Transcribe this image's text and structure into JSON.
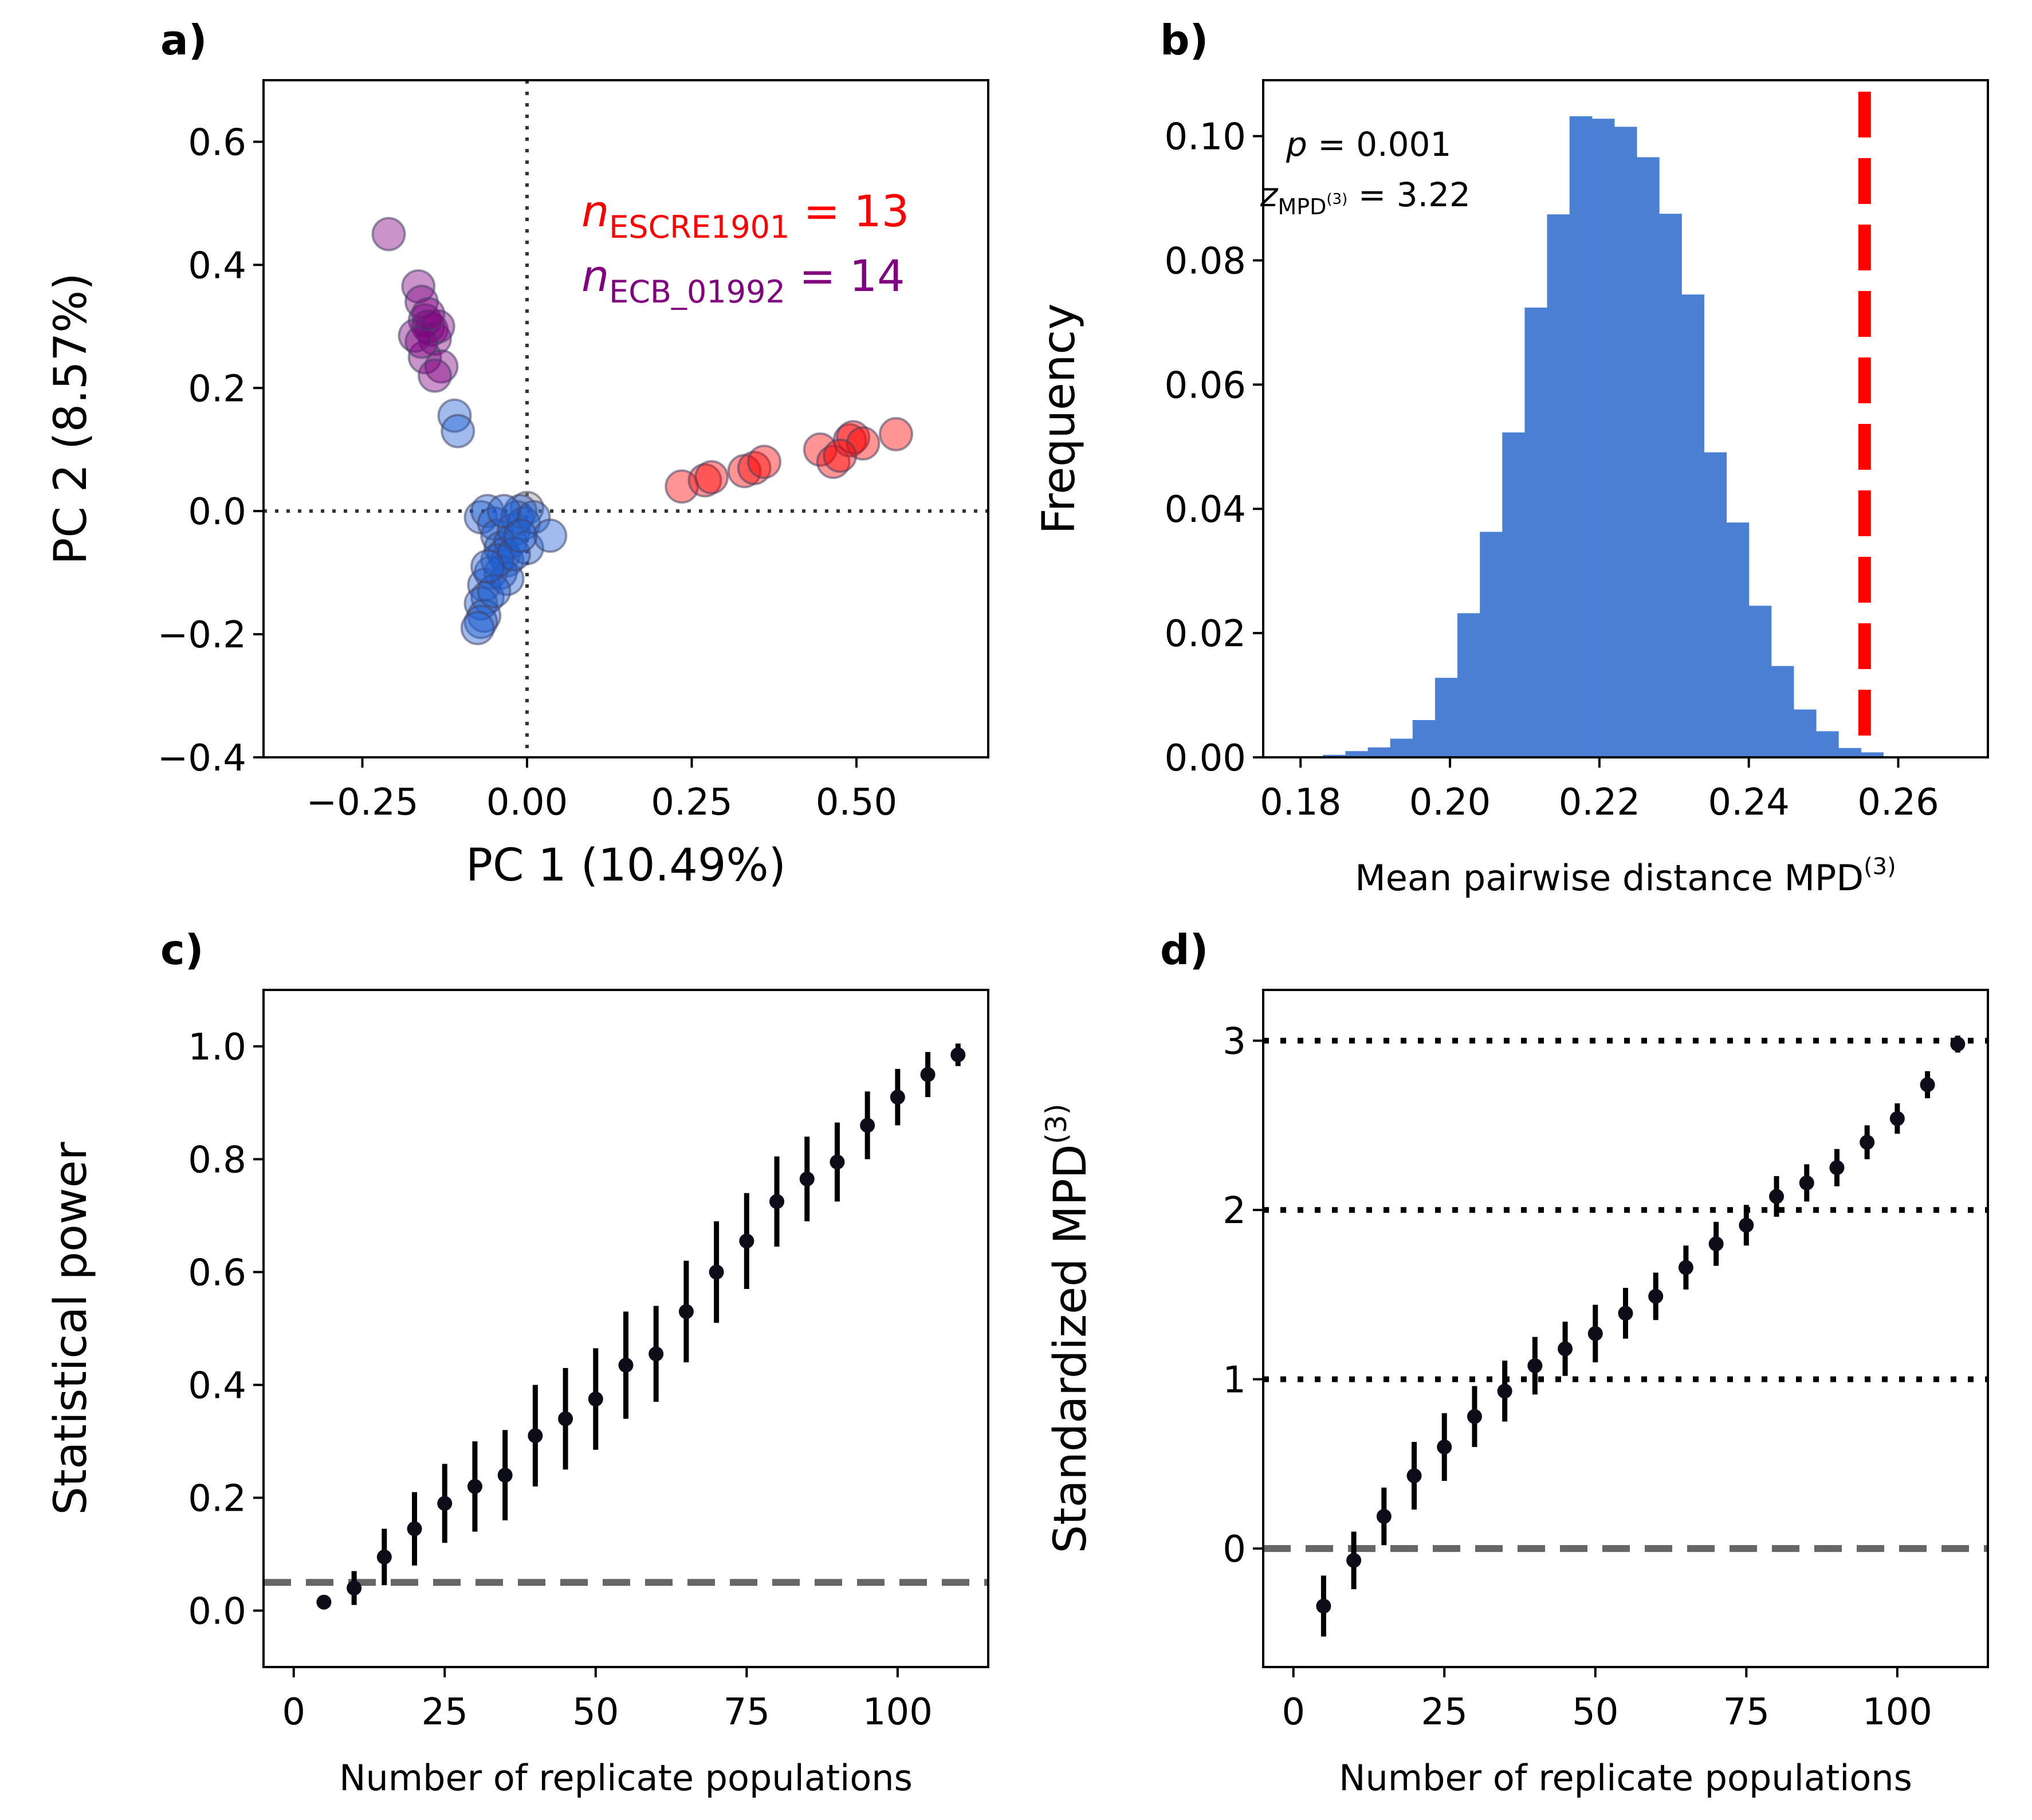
{
  "chart_data": [
    {
      "panel": "a)",
      "type": "scatter",
      "xlabel": "PC 1 (10.49%)",
      "ylabel": "PC 2 (8.57%)",
      "xlim": [
        -0.4,
        0.7
      ],
      "ylim": [
        -0.4,
        0.7
      ],
      "xticks": [
        -0.25,
        0.0,
        0.25,
        0.5
      ],
      "xtick_labels": [
        "−0.25",
        "0.00",
        "0.25",
        "0.50"
      ],
      "yticks": [
        -0.4,
        -0.2,
        0.0,
        0.2,
        0.4,
        0.6
      ],
      "ytick_labels": [
        "−0.4",
        "−0.2",
        "0.0",
        "0.2",
        "0.4",
        "0.6"
      ],
      "reference_lines": {
        "x": 0,
        "y": 0,
        "style": "dotted"
      },
      "annotations": [
        {
          "symbol": "n",
          "subscript": "ESCRE1901",
          "value": "= 13",
          "color": "#ff0000"
        },
        {
          "symbol": "n",
          "subscript": "ECB_01992",
          "value": "= 14",
          "color": "#800080"
        }
      ],
      "series": [
        {
          "color": "#ff0000",
          "x": [
            0.235,
            0.27,
            0.28,
            0.33,
            0.345,
            0.36,
            0.445,
            0.465,
            0.49,
            0.495,
            0.51,
            0.56,
            0.475
          ],
          "y": [
            0.04,
            0.05,
            0.055,
            0.065,
            0.07,
            0.08,
            0.1,
            0.08,
            0.115,
            0.12,
            0.11,
            0.125,
            0.09
          ]
        },
        {
          "color": "#800080",
          "x": [
            -0.21,
            -0.165,
            -0.16,
            -0.155,
            -0.15,
            -0.145,
            -0.14,
            -0.135,
            -0.155,
            -0.17,
            -0.13,
            -0.14,
            -0.16,
            -0.15
          ],
          "y": [
            0.45,
            0.365,
            0.34,
            0.31,
            0.3,
            0.295,
            0.28,
            0.3,
            0.25,
            0.285,
            0.235,
            0.22,
            0.275,
            0.32
          ]
        },
        {
          "color": "#1f5fd1",
          "x": [
            -0.11,
            -0.105,
            -0.07,
            -0.06,
            -0.05,
            -0.045,
            -0.04,
            -0.035,
            -0.03,
            -0.025,
            -0.02,
            -0.015,
            -0.01,
            -0.005,
            0.0,
            0.01,
            0.035,
            -0.055,
            -0.065,
            -0.06,
            -0.07,
            -0.065,
            -0.07,
            -0.075,
            -0.04,
            -0.03,
            -0.045,
            -0.05,
            -0.02,
            -0.06,
            -0.035,
            -0.01
          ],
          "y": [
            0.155,
            0.13,
            -0.01,
            0.0,
            -0.02,
            -0.04,
            -0.06,
            -0.07,
            -0.08,
            -0.05,
            -0.03,
            -0.01,
            0.0,
            -0.02,
            -0.06,
            -0.01,
            -0.04,
            -0.1,
            -0.12,
            -0.14,
            -0.15,
            -0.17,
            -0.18,
            -0.19,
            -0.1,
            -0.11,
            -0.08,
            -0.13,
            -0.07,
            -0.09,
            0.0,
            -0.04
          ]
        },
        {
          "color": "#999999",
          "x": [
            0.0
          ],
          "y": [
            0.005
          ]
        }
      ]
    },
    {
      "panel": "b)",
      "type": "bar",
      "xlabel": "Mean pairwise distance MPD",
      "xlabel_sup": "(3)",
      "ylabel": "Frequency",
      "xlim": [
        0.175,
        0.272
      ],
      "ylim": [
        0.0,
        0.109
      ],
      "xticks": [
        0.18,
        0.2,
        0.22,
        0.24,
        0.26
      ],
      "xtick_labels": [
        "0.18",
        "0.20",
        "0.22",
        "0.24",
        "0.26"
      ],
      "yticks": [
        0.0,
        0.02,
        0.04,
        0.06,
        0.08,
        0.1
      ],
      "ytick_labels": [
        "0.00",
        "0.02",
        "0.04",
        "0.06",
        "0.08",
        "0.10"
      ],
      "bar_color": "#4a7fd4",
      "bin_width": 0.003,
      "bin_left": [
        0.18,
        0.183,
        0.186,
        0.189,
        0.192,
        0.195,
        0.198,
        0.201,
        0.204,
        0.207,
        0.21,
        0.213,
        0.216,
        0.219,
        0.222,
        0.225,
        0.228,
        0.231,
        0.234,
        0.237,
        0.24,
        0.243,
        0.246,
        0.249,
        0.252,
        0.255
      ],
      "values": [
        0.0002,
        0.0004,
        0.001,
        0.0016,
        0.003,
        0.006,
        0.0128,
        0.0232,
        0.0363,
        0.0523,
        0.0724,
        0.0874,
        0.1032,
        0.1028,
        0.1015,
        0.0966,
        0.0875,
        0.0745,
        0.0491,
        0.0378,
        0.0244,
        0.0147,
        0.0077,
        0.0042,
        0.0015,
        0.0008
      ],
      "observed_line": {
        "x": 0.2555,
        "color": "#ff0000",
        "style": "dashed"
      },
      "annotations": [
        {
          "symbol": "p",
          "value": "= 0.001"
        },
        {
          "symbol": "z",
          "subscript": "MPD",
          "subscript_sup": "(3)",
          "value": "= 3.22"
        }
      ]
    },
    {
      "panel": "c)",
      "type": "scatter",
      "xlabel": "Number of replicate populations",
      "ylabel": "Statistical power",
      "xlim": [
        -5,
        115
      ],
      "ylim": [
        -0.1,
        1.1
      ],
      "xticks": [
        0,
        25,
        50,
        75,
        100
      ],
      "xtick_labels": [
        "0",
        "25",
        "50",
        "75",
        "100"
      ],
      "yticks": [
        0.0,
        0.2,
        0.4,
        0.6,
        0.8,
        1.0
      ],
      "ytick_labels": [
        "0.0",
        "0.2",
        "0.4",
        "0.6",
        "0.8",
        "1.0"
      ],
      "reference_line": {
        "y": 0.05,
        "style": "dashed",
        "color": "#666666"
      },
      "x": [
        5,
        10,
        15,
        20,
        25,
        30,
        35,
        40,
        45,
        50,
        55,
        60,
        65,
        70,
        75,
        80,
        85,
        90,
        95,
        100,
        105,
        110
      ],
      "y": [
        0.015,
        0.04,
        0.095,
        0.145,
        0.19,
        0.22,
        0.24,
        0.31,
        0.34,
        0.375,
        0.435,
        0.455,
        0.53,
        0.6,
        0.655,
        0.725,
        0.765,
        0.795,
        0.86,
        0.91,
        0.95,
        0.985
      ],
      "yerr": [
        0.01,
        0.03,
        0.05,
        0.065,
        0.07,
        0.08,
        0.08,
        0.09,
        0.09,
        0.09,
        0.095,
        0.085,
        0.09,
        0.09,
        0.085,
        0.08,
        0.075,
        0.07,
        0.06,
        0.05,
        0.04,
        0.02
      ]
    },
    {
      "panel": "d)",
      "type": "scatter",
      "xlabel": "Number of replicate populations",
      "ylabel": "Standardized MPD",
      "ylabel_sup": "(3)",
      "xlim": [
        -5,
        115
      ],
      "ylim": [
        -0.7,
        3.3
      ],
      "xticks": [
        0,
        25,
        50,
        75,
        100
      ],
      "xtick_labels": [
        "0",
        "25",
        "50",
        "75",
        "100"
      ],
      "yticks": [
        0,
        1,
        2,
        3
      ],
      "ytick_labels": [
        "0",
        "1",
        "2",
        "3"
      ],
      "reference_line": {
        "y": 0,
        "style": "dashed",
        "color": "#666666"
      },
      "dotted_lines": [
        1,
        2,
        3
      ],
      "x": [
        5,
        10,
        15,
        20,
        25,
        30,
        35,
        40,
        45,
        50,
        55,
        60,
        65,
        70,
        75,
        80,
        85,
        90,
        95,
        100,
        105,
        110
      ],
      "y": [
        -0.34,
        -0.07,
        0.19,
        0.43,
        0.6,
        0.78,
        0.93,
        1.08,
        1.18,
        1.27,
        1.39,
        1.49,
        1.66,
        1.8,
        1.91,
        2.08,
        2.16,
        2.25,
        2.4,
        2.54,
        2.74,
        2.98
      ],
      "yerr": [
        0.18,
        0.17,
        0.17,
        0.2,
        0.2,
        0.18,
        0.18,
        0.17,
        0.16,
        0.17,
        0.15,
        0.14,
        0.13,
        0.13,
        0.12,
        0.12,
        0.11,
        0.11,
        0.1,
        0.09,
        0.08,
        0.05
      ]
    }
  ]
}
